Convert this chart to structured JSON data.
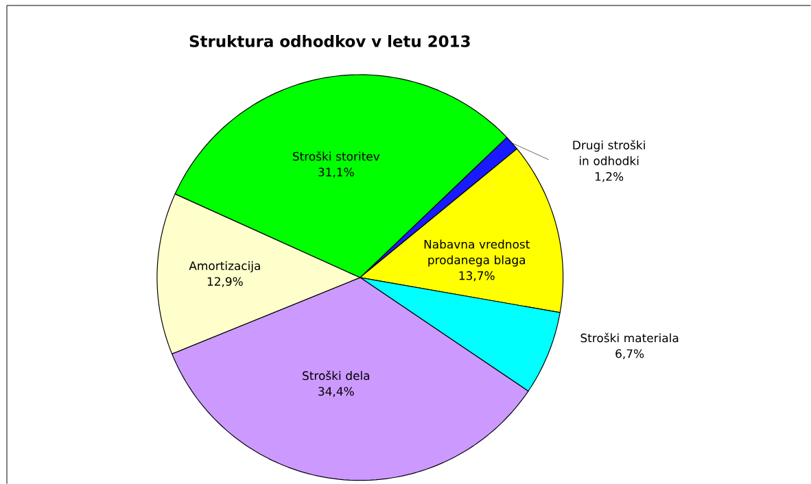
{
  "chart_data": {
    "type": "pie",
    "title": "Struktura  odhodkov v letu 2013",
    "categories": [
      "Drugi stroški in odhodki",
      "Nabavna vrednost prodanega blaga",
      "Stroški materiala",
      "Stroški dela",
      "Amortizacija",
      "Stroški storitev"
    ],
    "values": [
      1.2,
      13.7,
      6.7,
      34.4,
      12.9,
      31.1
    ],
    "colors": [
      "#1a1aff",
      "#ffff00",
      "#00ffff",
      "#cc99ff",
      "#ffffcc",
      "#00ff00"
    ],
    "value_labels": [
      "1,2%",
      "13,7%",
      "6,7%",
      "34,4%",
      "12,9%",
      "31,1%"
    ]
  }
}
